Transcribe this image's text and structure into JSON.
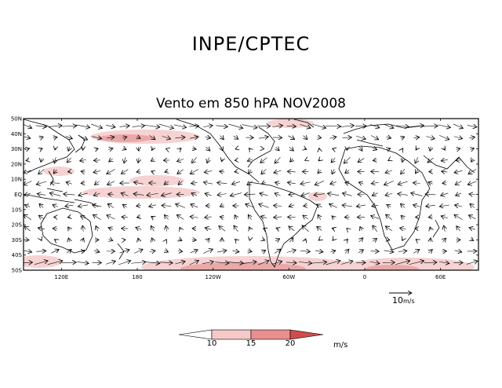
{
  "header": {
    "title": "INPE/CPTEC"
  },
  "plot": {
    "subtitle": "Vento em 850 hPA NOV2008",
    "lat_ticks": [
      "50N",
      "40N",
      "30N",
      "20N",
      "10N",
      "EQ",
      "10S",
      "20S",
      "30S",
      "40S",
      "50S"
    ],
    "lon_ticks": [
      {
        "label": "120E",
        "lon": 120
      },
      {
        "label": "180",
        "lon": 180
      },
      {
        "label": "120W",
        "lon": 240
      },
      {
        "label": "60W",
        "lon": 300
      },
      {
        "label": "0",
        "lon": 360
      },
      {
        "label": "60E",
        "lon": 420
      }
    ],
    "lon_range": [
      90,
      450
    ],
    "lat_range": [
      -50,
      50
    ],
    "reference_vector": {
      "value": "10",
      "unit": "m/s"
    }
  },
  "colorbar": {
    "labels": [
      "10",
      "15",
      "20"
    ],
    "unit": "m/s",
    "colors": [
      "#ffffff",
      "#f6c9c9",
      "#e88f8f",
      "#d24b4b"
    ]
  },
  "legend_colors": {
    "light": "#f6d2d2",
    "mid": "#eba8a8",
    "dark": "#e07878"
  }
}
